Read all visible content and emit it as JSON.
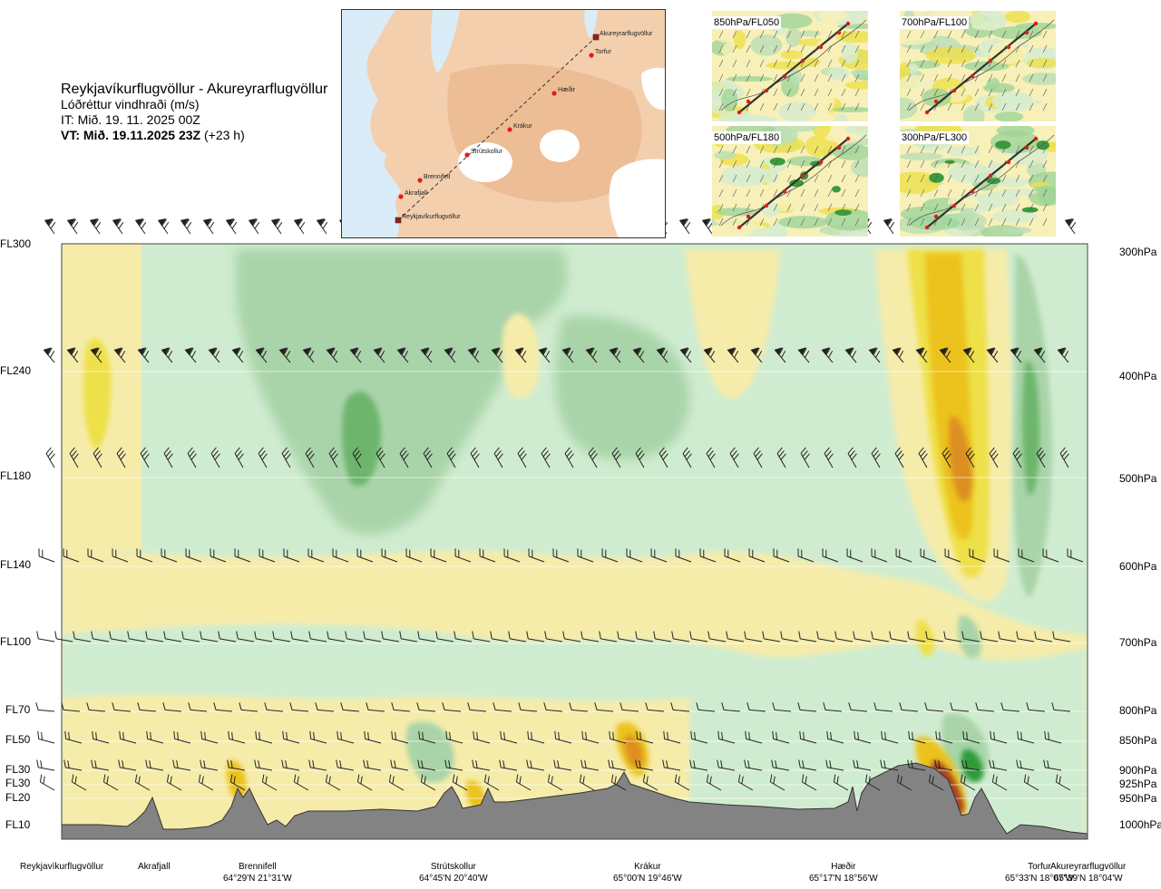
{
  "title": {
    "route": "Reykjavíkurflugvöllur - Akureyrarflugvöllur",
    "quantity": "Lóðréttur vindhraði (m/s)",
    "init_time": "IT: Mið. 19. 11. 2025 00Z",
    "valid_prefix": "VT: Mið. 19.11.2025 23Z",
    "valid_offset": "(+23 h)"
  },
  "map": {
    "waypoints": [
      "Akureyrarflugvöllur",
      "Torfur",
      "Hæðir",
      "Krákur",
      "Strútskollur",
      "Brennifell",
      "Akrafjall",
      "Reykjavíkurflugvöllur"
    ]
  },
  "mini_maps": [
    {
      "label": "850hPa/FL050"
    },
    {
      "label": "700hPa/FL100"
    },
    {
      "label": "500hPa/FL180"
    },
    {
      "label": "300hPa/FL300"
    }
  ],
  "chart_data": {
    "type": "heatmap",
    "flight_levels": [
      "FL300",
      "FL240",
      "FL180",
      "FL140",
      "FL100",
      "FL70",
      "FL50",
      "FL30",
      "FL30",
      "FL20",
      "FL10"
    ],
    "pressure_levels": [
      "300hPa",
      "400hPa",
      "500hPa",
      "600hPa",
      "700hPa",
      "800hPa",
      "850hPa",
      "900hPa",
      "925hPa",
      "950hPa",
      "1000hPa"
    ],
    "locations": [
      {
        "name": "Reykjavíkurflugvöllur",
        "coord": ""
      },
      {
        "name": "Akrafjall",
        "coord": ""
      },
      {
        "name": "Brennifell",
        "coord": "64°29'N 21°31'W"
      },
      {
        "name": "Strútskollur",
        "coord": "64°45'N 20°40'W"
      },
      {
        "name": "Krákur",
        "coord": "65°00'N 19°46'W"
      },
      {
        "name": "Hæðir",
        "coord": "65°17'N 18°56'W"
      },
      {
        "name": "Torfur",
        "coord": "65°33'N 18°07'W"
      },
      {
        "name": "Akureyrarflugvöllur",
        "coord": "65°39'N 18°04'W"
      }
    ],
    "colors": {
      "strong_down": "#6db56d",
      "mod_down": "#a9d4a9",
      "weak_down": "#d0ecd0",
      "neutral": "#fdfde3",
      "weak_up": "#f6ecaa",
      "mod_up": "#eee04a",
      "strong_up": "#ecc21b",
      "stronger_up": "#dd8f22",
      "extreme_up": "#a9431f",
      "terrain": "#838383"
    }
  }
}
